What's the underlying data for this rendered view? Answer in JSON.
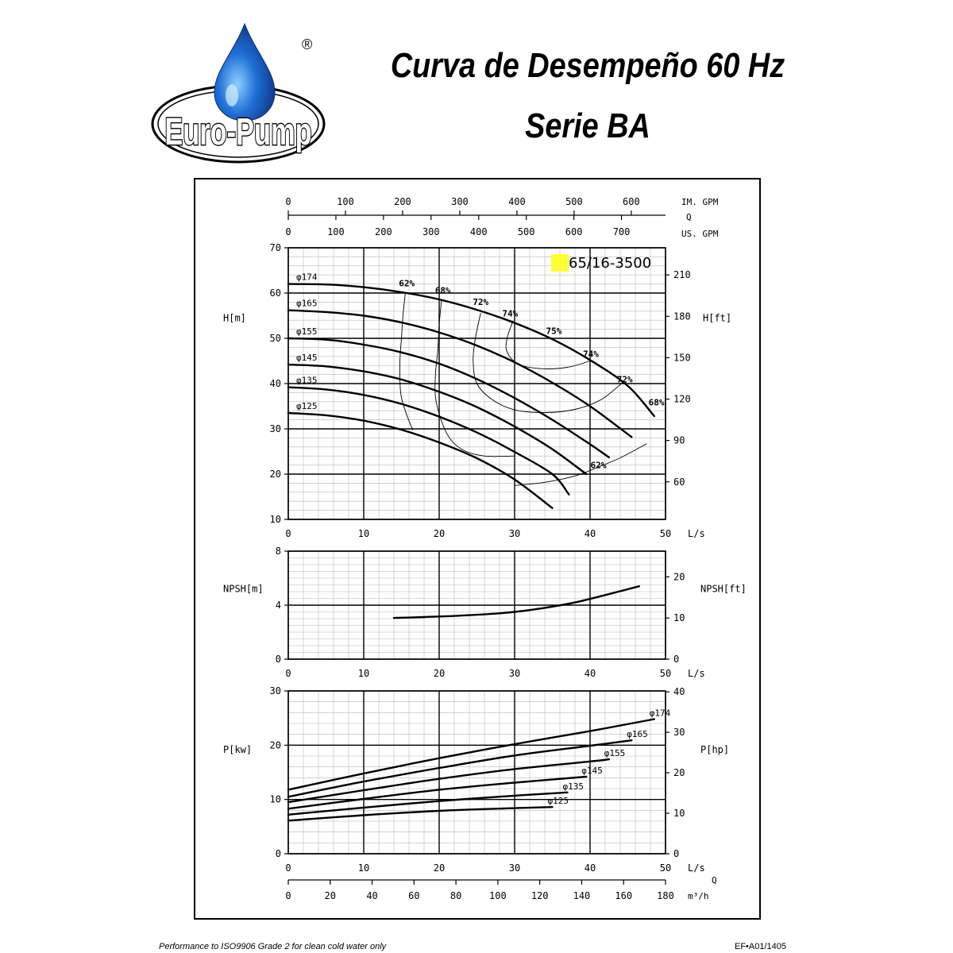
{
  "header": {
    "title": "Curva de Desempeño 60 Hz",
    "subtitle": "Serie BA",
    "logo_text": "Euro-Pump",
    "registered_mark": "®"
  },
  "footer": {
    "left": "Performance to ISO9906 Grade 2 for clean cold water only",
    "right": "EF•A01/1405"
  },
  "colors": {
    "line": "#000000",
    "grid_major": "#000000",
    "grid_minor": "#b8b8b8",
    "model_highlight": "#ffff33",
    "logo_blue": "#1f6fd6",
    "logo_dark": "#0a2f7a"
  },
  "chart_data": [
    {
      "type": "line",
      "name": "head",
      "model_label": "65/16-3500",
      "x_range": [
        0,
        50
      ],
      "y_range": [
        10,
        70
      ],
      "y2_range": [
        32.8,
        229.7
      ],
      "x_ticks": [
        0,
        10,
        20,
        30,
        40,
        50
      ],
      "y_ticks": [
        10,
        20,
        30,
        40,
        50,
        60,
        70
      ],
      "y2_ticks": [
        60,
        90,
        120,
        150,
        180,
        210
      ],
      "xlabel": "L/s",
      "ylabel": "H[m]",
      "y2label": "H[ft]",
      "top_axes": {
        "q_label": "Q",
        "im_label": "IM. GPM",
        "im_ticks": [
          0,
          100,
          200,
          300,
          400,
          500,
          600
        ],
        "us_label": "US. GPM",
        "us_ticks": [
          0,
          100,
          200,
          300,
          400,
          500,
          600,
          700
        ],
        "im_to_ls": 0.07577,
        "us_to_ls": 0.06309
      },
      "series": [
        {
          "name": "φ174",
          "x": [
            0,
            5,
            10,
            15,
            20,
            25,
            30,
            35,
            40,
            45,
            48.5
          ],
          "y": [
            62,
            61.9,
            61.3,
            60.2,
            58.6,
            56.3,
            53.4,
            49.8,
            45.2,
            39.5,
            32.8
          ]
        },
        {
          "name": "φ165",
          "x": [
            0,
            5,
            10,
            15,
            20,
            25,
            30,
            35,
            40,
            45.5
          ],
          "y": [
            56.2,
            55.8,
            55,
            53.5,
            51.3,
            48.4,
            44.7,
            40.2,
            35,
            28.2
          ]
        },
        {
          "name": "φ155",
          "x": [
            0,
            5,
            10,
            15,
            20,
            25,
            30,
            35,
            40,
            42.5
          ],
          "y": [
            50,
            49.7,
            48.6,
            46.9,
            44.4,
            41,
            36.8,
            32,
            26.6,
            23.7
          ]
        },
        {
          "name": "φ145",
          "x": [
            0,
            5,
            10,
            15,
            20,
            25,
            30,
            35,
            39.5
          ],
          "y": [
            44.2,
            43.8,
            42.7,
            40.9,
            38.2,
            34.8,
            30.5,
            25.5,
            20
          ]
        },
        {
          "name": "φ135",
          "x": [
            0,
            5,
            10,
            15,
            20,
            25,
            30,
            35,
            37.2
          ],
          "y": [
            39.2,
            38.7,
            37.5,
            35.5,
            32.7,
            29.2,
            24.9,
            20,
            15.5
          ]
        },
        {
          "name": "φ125",
          "x": [
            0,
            5,
            10,
            15,
            20,
            25,
            30,
            35
          ],
          "y": [
            33.5,
            33,
            31.8,
            29.8,
            27,
            23.5,
            18.8,
            12.5
          ]
        }
      ],
      "efficiency_curves": [
        {
          "name": "62%",
          "x": [
            15.5,
            15.2,
            15,
            14.8,
            14.9,
            15.5,
            16.5
          ],
          "y": [
            59.9,
            55,
            50,
            45,
            38,
            34,
            29.7
          ]
        },
        {
          "name": "68%",
          "x": [
            20.3,
            20,
            19.8,
            19.5,
            19.6,
            21,
            23,
            26,
            30
          ],
          "y": [
            58.3,
            53,
            47,
            42,
            36,
            29,
            25.5,
            24,
            24
          ]
        },
        {
          "name": "72%",
          "x": [
            25.5,
            24.8,
            24.5,
            25,
            27,
            30,
            34,
            38,
            41.5,
            44.5
          ],
          "y": [
            55.6,
            50,
            45,
            40,
            36.5,
            34.2,
            33.6,
            34.3,
            36.5,
            40.5
          ]
        },
        {
          "name": "74%",
          "x": [
            29.8,
            29,
            29,
            30.5,
            33.5,
            37,
            40
          ],
          "y": [
            53.9,
            50,
            47,
            44.3,
            43.3,
            43.6,
            45
          ]
        },
        {
          "name": "62% ",
          "x": [
            30,
            34,
            38,
            41,
            44,
            47.5
          ],
          "y": [
            17.5,
            18.2,
            19.6,
            21.5,
            23.6,
            26.7
          ]
        }
      ],
      "efficiency_labels": [
        {
          "text": "62%",
          "x": 15.7,
          "y": 61.5
        },
        {
          "text": "68%",
          "x": 20.5,
          "y": 59.9
        },
        {
          "text": "72%",
          "x": 25.5,
          "y": 57.4
        },
        {
          "text": "74%",
          "x": 29.4,
          "y": 54.8
        },
        {
          "text": "75%",
          "x": 35.2,
          "y": 51
        },
        {
          "text": "74%",
          "x": 40.1,
          "y": 45.9
        },
        {
          "text": "72%",
          "x": 44.6,
          "y": 40.3
        },
        {
          "text": "68%",
          "x": 48.8,
          "y": 35.2
        },
        {
          "text": "62%",
          "x": 41.1,
          "y": 21.3
        }
      ]
    },
    {
      "type": "line",
      "name": "npsh",
      "x_range": [
        0,
        50
      ],
      "y_range": [
        0,
        8
      ],
      "y2_range": [
        0,
        26.25
      ],
      "x_ticks": [
        0,
        10,
        20,
        30,
        40,
        50
      ],
      "y_ticks": [
        0,
        4,
        8
      ],
      "y2_ticks": [
        0,
        10,
        20
      ],
      "xlabel": "L/s",
      "ylabel": "NPSH[m]",
      "y2label": "NPSH[ft]",
      "series": [
        {
          "name": "NPSH",
          "x": [
            14,
            18,
            22,
            26,
            30,
            34,
            38,
            42,
            46.5
          ],
          "y": [
            3.05,
            3.12,
            3.2,
            3.32,
            3.5,
            3.8,
            4.2,
            4.75,
            5.4
          ]
        }
      ]
    },
    {
      "type": "line",
      "name": "power",
      "x_range": [
        0,
        50
      ],
      "y_range": [
        0,
        30
      ],
      "y2_range": [
        0,
        40.23
      ],
      "x_ticks": [
        0,
        10,
        20,
        30,
        40,
        50
      ],
      "y_ticks": [
        0,
        10,
        20,
        30
      ],
      "y2_ticks": [
        0,
        10,
        20,
        30,
        40
      ],
      "xlabel": "L/s",
      "ylabel": "P[kw]",
      "y2label": "P[hp]",
      "bottom_axis": {
        "q_label": "Q",
        "unit_label": "m³/h",
        "ticks": [
          0,
          20,
          40,
          60,
          80,
          100,
          120,
          140,
          160,
          180
        ],
        "m3h_to_ls": 0.27778
      },
      "series": [
        {
          "name": "φ174",
          "x": [
            0,
            10,
            20,
            30,
            40,
            48.5
          ],
          "y": [
            11.8,
            14.8,
            17.6,
            20.2,
            22.6,
            24.8
          ]
        },
        {
          "name": "φ165",
          "x": [
            0,
            10,
            20,
            30,
            40,
            45.5
          ],
          "y": [
            10.5,
            13.3,
            15.8,
            18.1,
            19.9,
            20.9
          ]
        },
        {
          "name": "φ155",
          "x": [
            0,
            10,
            20,
            30,
            40,
            42.5
          ],
          "y": [
            9.5,
            11.7,
            13.8,
            15.6,
            17,
            17.4
          ]
        },
        {
          "name": "φ145",
          "x": [
            0,
            10,
            20,
            30,
            39.5
          ],
          "y": [
            8.3,
            10.1,
            11.8,
            13.1,
            14.2
          ]
        },
        {
          "name": "φ135",
          "x": [
            0,
            10,
            20,
            30,
            37
          ],
          "y": [
            7.2,
            8.5,
            9.7,
            10.7,
            11.3
          ]
        },
        {
          "name": "φ125",
          "x": [
            0,
            10,
            20,
            30,
            35
          ],
          "y": [
            6.1,
            7.1,
            7.9,
            8.4,
            8.6
          ]
        }
      ]
    }
  ]
}
